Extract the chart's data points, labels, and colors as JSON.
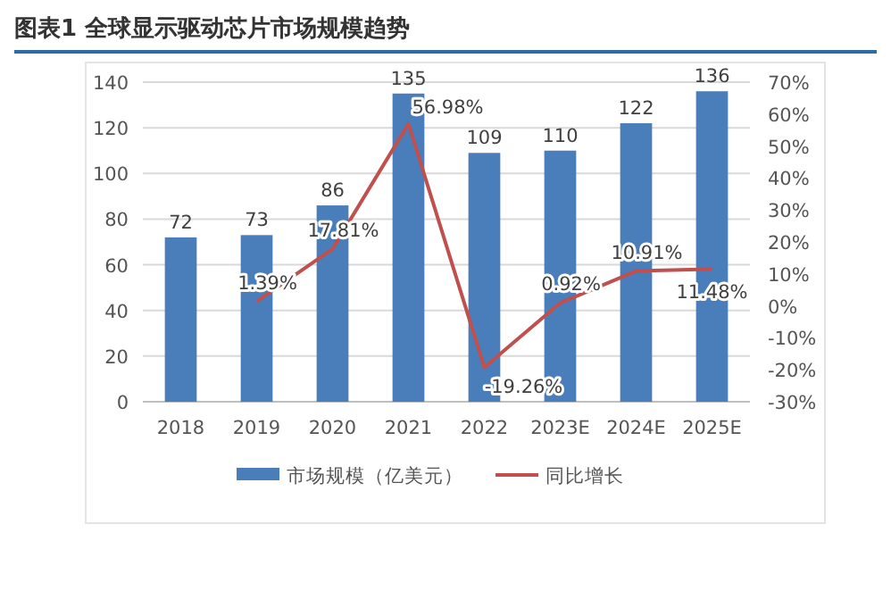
{
  "chart_data": {
    "type": "bar",
    "title": "图表1  全球显示驱动芯片市场规模趋势",
    "categories": [
      "2018",
      "2019",
      "2020",
      "2021",
      "2022",
      "2023E",
      "2024E",
      "2025E"
    ],
    "series": [
      {
        "name": "市场规模（亿美元）",
        "color": "#4a7ebb",
        "values": [
          72,
          73,
          86,
          135,
          109,
          110,
          122,
          136
        ]
      },
      {
        "name": "同比增长",
        "type": "line",
        "axis": "y2",
        "color": "#c0504d",
        "values": [
          null,
          1.39,
          17.81,
          56.98,
          -19.26,
          0.92,
          10.91,
          11.48
        ],
        "value_labels": [
          null,
          "1.39%",
          "17.81%",
          "56.98%",
          "-19.26%",
          "0.92%",
          "10.91%",
          "11.48%"
        ]
      }
    ],
    "data_labels": true,
    "ylim": [
      0,
      140
    ],
    "yticks": [
      0,
      20,
      40,
      60,
      80,
      100,
      120,
      140
    ],
    "y2lim": [
      -30,
      70
    ],
    "y2ticks": [
      {
        "value": -30,
        "label": "-30%"
      },
      {
        "value": -20,
        "label": "-20%"
      },
      {
        "value": -10,
        "label": "-10%"
      },
      {
        "value": 0,
        "label": "0%"
      },
      {
        "value": 10,
        "label": "10%"
      },
      {
        "value": 20,
        "label": "20%"
      },
      {
        "value": 30,
        "label": "30%"
      },
      {
        "value": 40,
        "label": "40%"
      },
      {
        "value": 50,
        "label": "50%"
      },
      {
        "value": 60,
        "label": "60%"
      },
      {
        "value": 70,
        "label": "70%"
      }
    ],
    "grid": "y",
    "legend": "bottom"
  }
}
